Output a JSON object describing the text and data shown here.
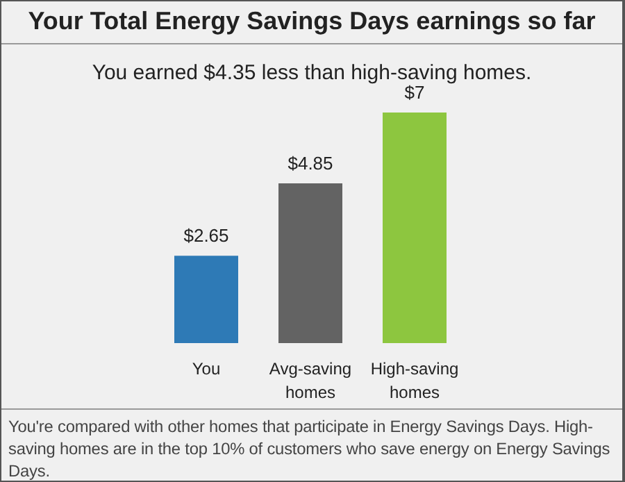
{
  "chart_data": {
    "type": "bar",
    "title": "Your Total Energy Savings Days earnings so far",
    "subtitle": "You earned $4.35 less than high-saving homes.",
    "categories": [
      "You",
      "Avg-saving homes",
      "High-saving homes"
    ],
    "values": [
      2.65,
      4.85,
      7
    ],
    "colors": [
      "#2e7ab6",
      "#636363",
      "#8dc63f"
    ],
    "value_labels": [
      "$2.65",
      "$4.85",
      "$7"
    ],
    "annotations": [
      "You're compared with other homes that participate in Energy Savings Days. High-saving homes are in the top 10% of customers who save energy on Energy Savings Days."
    ]
  }
}
